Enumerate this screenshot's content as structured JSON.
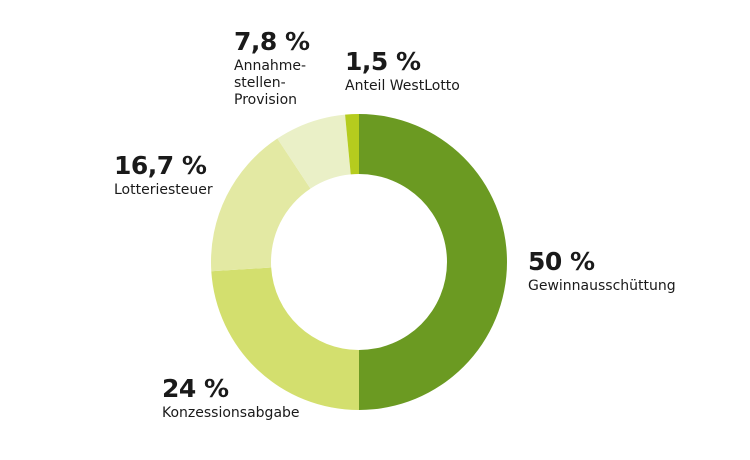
{
  "chart_data": {
    "type": "pie",
    "slices": [
      {
        "label": "Gewinnausschüttung",
        "percent_label": "50 %",
        "value": 50,
        "color": "#6b9a22"
      },
      {
        "label": "Konzessionsabgabe",
        "percent_label": "24 %",
        "value": 24,
        "color": "#d3df6e"
      },
      {
        "label": "Lotteriesteuer",
        "percent_label": "16,7 %",
        "value": 16.7,
        "color": "#e3e9a3"
      },
      {
        "label": "Annahme-\nstellen-\nProvision",
        "percent_label": "7,8 %",
        "value": 7.8,
        "color": "#eaf0c7"
      },
      {
        "label": "Anteil WestLotto",
        "percent_label": "1,5 %",
        "value": 1.5,
        "color": "#b5cc1e"
      }
    ]
  }
}
